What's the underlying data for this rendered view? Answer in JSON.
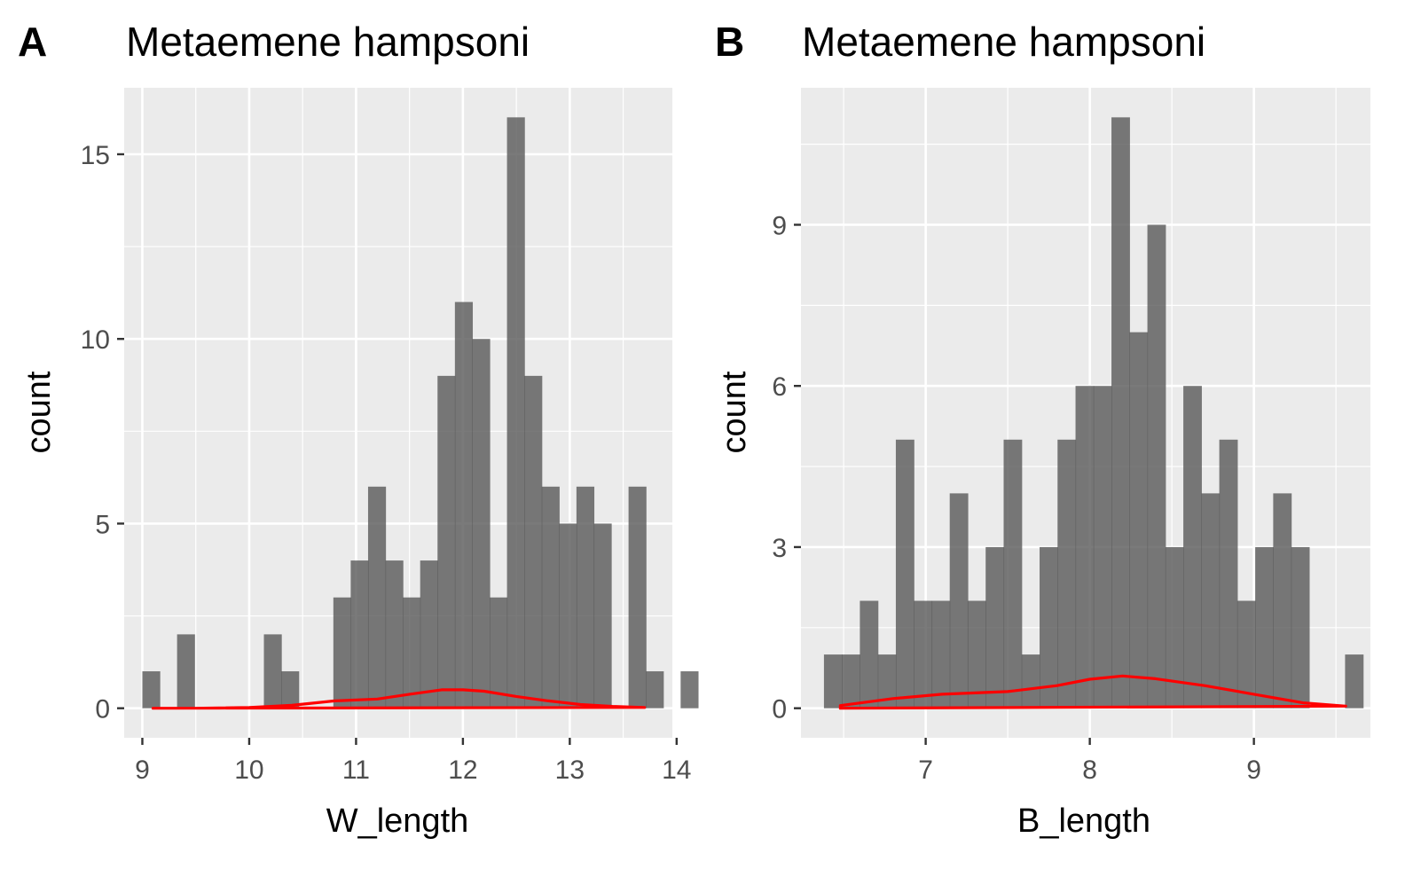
{
  "chart_data": [
    {
      "type": "bar",
      "panel_tag": "A",
      "title": "Metaemene hampsoni",
      "xlabel": "W_length",
      "ylabel": "count",
      "xlim": [
        8.83,
        13.96
      ],
      "ylim": [
        -0.8,
        16.8
      ],
      "x_ticks": [
        9,
        10,
        11,
        12,
        13,
        14
      ],
      "y_ticks": [
        0,
        5,
        10,
        15
      ],
      "grid": true,
      "legend": "none",
      "bar_color": "#595959",
      "line_color": "#ff0000",
      "bins": {
        "start": 9.0,
        "width": 0.1625,
        "counts": [
          1,
          0,
          2,
          0,
          0,
          0,
          0,
          2,
          1,
          0,
          0,
          3,
          4,
          6,
          4,
          3,
          4,
          9,
          11,
          10,
          3,
          16,
          9,
          6,
          5,
          6,
          5,
          0,
          6,
          1,
          0,
          1
        ]
      },
      "density_curve": {
        "x": [
          9.1,
          9.5,
          10.0,
          10.4,
          10.8,
          11.2,
          11.5,
          11.8,
          12.0,
          12.2,
          12.5,
          12.8,
          13.1,
          13.4,
          13.7
        ],
        "y": [
          0.0,
          0.0,
          0.02,
          0.08,
          0.2,
          0.25,
          0.38,
          0.5,
          0.5,
          0.46,
          0.32,
          0.2,
          0.1,
          0.05,
          0.02
        ]
      }
    },
    {
      "type": "bar",
      "panel_tag": "B",
      "title": "Metaemene hampsoni",
      "xlabel": "B_length",
      "ylabel": "count",
      "xlim": [
        6.24,
        9.71
      ],
      "ylim": [
        -0.55,
        11.55
      ],
      "x_ticks": [
        7,
        8,
        9
      ],
      "y_ticks": [
        0,
        3,
        6,
        9
      ],
      "grid": true,
      "legend": "none",
      "bar_color": "#595959",
      "line_color": "#ff0000",
      "bins": {
        "start": 6.38,
        "width": 0.1095,
        "counts": [
          1,
          1,
          2,
          1,
          5,
          2,
          2,
          4,
          2,
          3,
          5,
          1,
          3,
          5,
          6,
          6,
          11,
          7,
          9,
          3,
          6,
          4,
          5,
          2,
          3,
          4,
          3,
          0,
          0,
          1
        ]
      },
      "density_curve": {
        "x": [
          6.48,
          6.8,
          7.1,
          7.5,
          7.8,
          8.0,
          8.2,
          8.4,
          8.7,
          9.0,
          9.3,
          9.56
        ],
        "y": [
          0.05,
          0.18,
          0.26,
          0.31,
          0.42,
          0.54,
          0.6,
          0.55,
          0.42,
          0.26,
          0.1,
          0.04
        ]
      }
    }
  ]
}
